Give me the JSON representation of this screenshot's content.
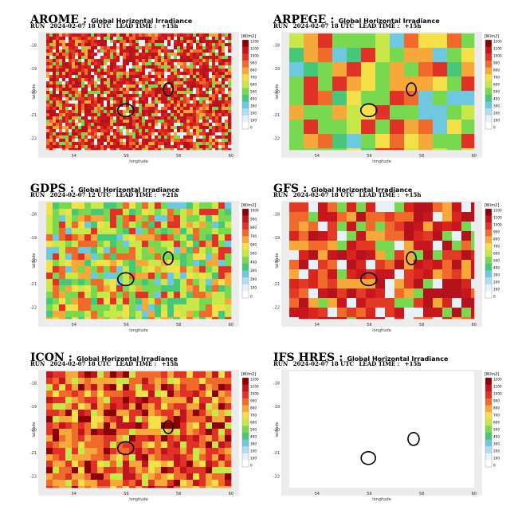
{
  "colorbar": {
    "unit": "[W/m2]",
    "ticks": [
      "1200",
      "1100",
      "1000",
      "900",
      "800",
      "700",
      "600",
      "500",
      "400",
      "300",
      "200",
      "100",
      "0"
    ],
    "colors": [
      "#8b0000",
      "#c0141e",
      "#e03226",
      "#f06a2c",
      "#f7a83a",
      "#f5e04a",
      "#c8e84a",
      "#78d850",
      "#46c878",
      "#6ec8e0",
      "#b4dcf0",
      "#e8f0f8",
      "#ffffff"
    ]
  },
  "axes": {
    "xlabel": "longitude",
    "ylabel": "latitude",
    "xticks": [
      "54",
      "56",
      "58",
      "60"
    ],
    "yticks": [
      "-18",
      "-19",
      "-20",
      "-21",
      "-22"
    ]
  },
  "panels": [
    {
      "model": "AROME",
      "sep": ":",
      "desc": "Global Horizontal Irradiance",
      "run_label": "RUN",
      "run": "2024-02-07 18 UTC",
      "lead_label": "LEAD TIME :",
      "lead": "+15h",
      "cbar_top": "1200",
      "dominant": "red"
    },
    {
      "model": "ARPEGE",
      "sep": ":",
      "desc": "Global Horizontal Irradiance",
      "run_label": "RUN",
      "run": "2024-02-07 18 UTC",
      "lead_label": "LEAD TIME :",
      "lead": "+15h",
      "cbar_top": "1200",
      "dominant": "mixed"
    },
    {
      "model": "GDPS",
      "sep": ":",
      "desc": "Global Horizontal Irradiance",
      "run_label": "RUN",
      "run": "2024-02-07 12 UTC",
      "lead_label": "LEAD TIME :",
      "lead": "+21h",
      "cbar_top": "1000",
      "dominant": "green"
    },
    {
      "model": "GFS",
      "sep": ":",
      "desc": "Global Horizontal Irradiance",
      "run_label": "RUN",
      "run": "2024-02-07 18 UTC",
      "lead_label": "LEAD TIME :",
      "lead": "+15h",
      "cbar_top": "1200",
      "dominant": "red"
    },
    {
      "model": "ICON",
      "sep": ":",
      "desc": "Global Horizontal Irradiance",
      "run_label": "RUN",
      "run": "2024-02-07 18 UTC",
      "lead_label": "LEAD TIME :",
      "lead": "+15h",
      "cbar_top": "1200",
      "dominant": "orange"
    },
    {
      "model": "IFS HRES",
      "sep": ":",
      "desc": "Global Horizontal Irradiance",
      "run_label": "RUN",
      "run": "2024-02-07 18 UTC",
      "lead_label": "LEAD TIME :",
      "lead": "+15h",
      "cbar_top": "1200",
      "dominant": "small"
    }
  ]
}
